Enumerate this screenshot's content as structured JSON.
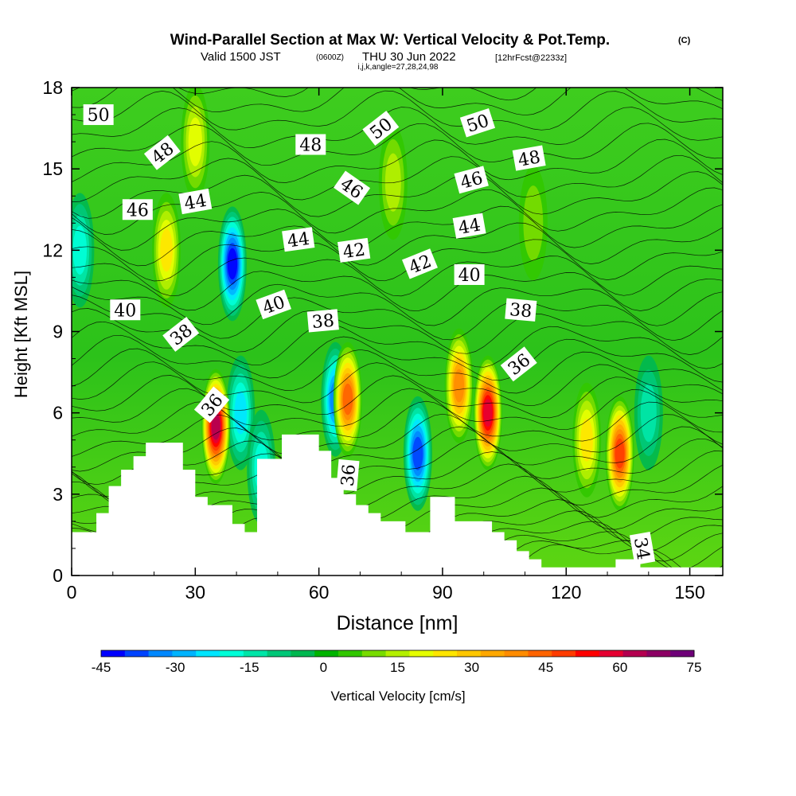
{
  "chart_data": {
    "type": "contour",
    "title": "Wind-Parallel Section at Max W: Vertical Velocity & Pot.Temp.",
    "title_mark": "(C)",
    "subtitle_pre": "Valid 1500 JST",
    "subtitle_utc": "(0600Z)",
    "subtitle_post": "THU 30 Jun 2022",
    "subtitle_fcst": "[12hrFcst@2233z]",
    "subtitle_ijk": "i,j,k,angle=27,28,24,98",
    "xlabel": "Distance [nm]",
    "ylabel": "Height [Kft MSL]",
    "xlim": [
      0,
      158
    ],
    "ylim": [
      0,
      18
    ],
    "xticks": [
      "0",
      "30",
      "60",
      "90",
      "120",
      "150"
    ],
    "yticks": [
      "0",
      "3",
      "6",
      "9",
      "12",
      "15",
      "18"
    ],
    "fill_variable": "Vertical Velocity [cm/s]",
    "colorbar_ticks": [
      "-45",
      "-30",
      "-15",
      "0",
      "15",
      "30",
      "45",
      "60",
      "75"
    ],
    "colorbar_levels": [
      -45,
      -40,
      -35,
      -30,
      -25,
      -20,
      -15,
      -10,
      -5,
      0,
      5,
      10,
      15,
      20,
      25,
      30,
      35,
      40,
      45,
      50,
      55,
      60,
      65,
      70,
      75
    ],
    "colorbar_colors": [
      "#0000ff",
      "#0044ff",
      "#0088ff",
      "#00b4ff",
      "#00e6ff",
      "#00ffd8",
      "#00e6a8",
      "#00c878",
      "#00b850",
      "#00b400",
      "#32c800",
      "#78dc00",
      "#b4f000",
      "#e6ff00",
      "#ffe600",
      "#ffc800",
      "#ffa800",
      "#ff8c00",
      "#ff6400",
      "#ff3c00",
      "#ff0000",
      "#e60032",
      "#b40050",
      "#8c0064",
      "#6e0078"
    ],
    "updrafts": [
      {
        "x": 35,
        "y": 5.5,
        "w_max": 65
      },
      {
        "x": 23,
        "y": 12,
        "w_max": 28
      },
      {
        "x": 30,
        "y": 16,
        "w_max": 22
      },
      {
        "x": 67,
        "y": 6.5,
        "w_max": 45
      },
      {
        "x": 94,
        "y": 7,
        "w_max": 40
      },
      {
        "x": 101,
        "y": 6,
        "w_max": 60
      },
      {
        "x": 125,
        "y": 5,
        "w_max": 25
      },
      {
        "x": 133,
        "y": 4.5,
        "w_max": 50
      },
      {
        "x": 78,
        "y": 14.5,
        "w_max": 15
      },
      {
        "x": 112,
        "y": 13,
        "w_max": 12
      }
    ],
    "downdrafts": [
      {
        "x": 39,
        "y": 11.5,
        "w_min": -45
      },
      {
        "x": 41,
        "y": 6,
        "w_min": -25
      },
      {
        "x": 84,
        "y": 4.5,
        "w_min": -40
      },
      {
        "x": 64,
        "y": 6.5,
        "w_min": -35
      },
      {
        "x": 46,
        "y": 4,
        "w_min": -22
      },
      {
        "x": 2,
        "y": 12,
        "w_min": -20
      },
      {
        "x": 140,
        "y": 6,
        "w_min": -18
      }
    ],
    "terrain": {
      "x": [
        0,
        3,
        6,
        9,
        12,
        15,
        18,
        21,
        24,
        27,
        30,
        33,
        36,
        39,
        42,
        45,
        48,
        51,
        54,
        57,
        60,
        63,
        66,
        69,
        72,
        75,
        78,
        81,
        84,
        87,
        90,
        93,
        96,
        99,
        102,
        105,
        108,
        111,
        114,
        117,
        120,
        123,
        126,
        129,
        132,
        135,
        138,
        141,
        144,
        147,
        150,
        153,
        156,
        158
      ],
      "height_kft": [
        1.6,
        1.6,
        2.3,
        3.3,
        3.9,
        4.4,
        4.9,
        4.9,
        4.9,
        3.9,
        2.9,
        2.6,
        2.6,
        1.9,
        1.6,
        4.3,
        4.3,
        5.2,
        5.2,
        5.2,
        4.6,
        3.6,
        3.0,
        2.6,
        2.3,
        2.0,
        2.0,
        1.6,
        1.6,
        2.9,
        2.9,
        2.0,
        2.0,
        2.0,
        1.6,
        1.3,
        0.9,
        0.6,
        0.3,
        0.3,
        0.3,
        0.3,
        0.3,
        0.3,
        0.6,
        0.6,
        0.3,
        0.3,
        0.3,
        0.3,
        0.3,
        0.3,
        0.3,
        0.3
      ]
    },
    "isentrope_range": [
      34,
      52
    ],
    "contour_labels": [
      {
        "text": "50",
        "x": 6.5,
        "y": 17.0,
        "rot": 0
      },
      {
        "text": "48",
        "x": 22.0,
        "y": 15.6,
        "rot": -38
      },
      {
        "text": "46",
        "x": 16.0,
        "y": 13.5,
        "rot": 0
      },
      {
        "text": "44",
        "x": 30.0,
        "y": 13.8,
        "rot": -10
      },
      {
        "text": "40",
        "x": 13.0,
        "y": 9.8,
        "rot": 0
      },
      {
        "text": "38",
        "x": 26.5,
        "y": 8.9,
        "rot": -38
      },
      {
        "text": "36",
        "x": 34.0,
        "y": 6.3,
        "rot": -50
      },
      {
        "text": "48",
        "x": 58.0,
        "y": 15.9,
        "rot": 0
      },
      {
        "text": "50",
        "x": 75.0,
        "y": 16.5,
        "rot": -38
      },
      {
        "text": "46",
        "x": 68.0,
        "y": 14.3,
        "rot": 35
      },
      {
        "text": "44",
        "x": 55.0,
        "y": 12.4,
        "rot": -8
      },
      {
        "text": "42",
        "x": 68.5,
        "y": 12.0,
        "rot": -8
      },
      {
        "text": "40",
        "x": 49.0,
        "y": 10.0,
        "rot": -20
      },
      {
        "text": "38",
        "x": 61.0,
        "y": 9.4,
        "rot": -5
      },
      {
        "text": "36",
        "x": 67.0,
        "y": 3.7,
        "rot": -85
      },
      {
        "text": "50",
        "x": 98.5,
        "y": 16.7,
        "rot": -18
      },
      {
        "text": "48",
        "x": 111.0,
        "y": 15.4,
        "rot": -10
      },
      {
        "text": "46",
        "x": 97.0,
        "y": 14.6,
        "rot": -15
      },
      {
        "text": "44",
        "x": 96.5,
        "y": 12.9,
        "rot": -10
      },
      {
        "text": "42",
        "x": 84.5,
        "y": 11.5,
        "rot": -22
      },
      {
        "text": "40",
        "x": 96.5,
        "y": 11.1,
        "rot": 0
      },
      {
        "text": "38",
        "x": 109.0,
        "y": 9.8,
        "rot": 5
      },
      {
        "text": "36",
        "x": 108.5,
        "y": 7.8,
        "rot": -38
      },
      {
        "text": "34",
        "x": 138.5,
        "y": 1.0,
        "rot": 80
      }
    ]
  }
}
